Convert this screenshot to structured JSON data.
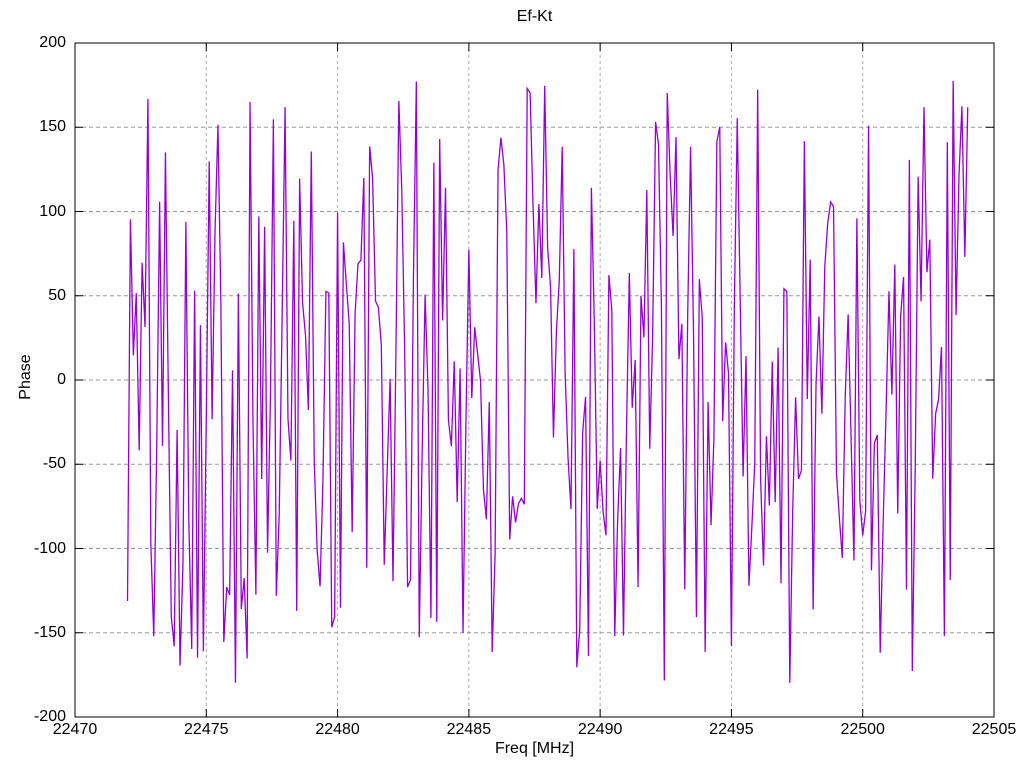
{
  "window": {
    "background_color": "#ffffff"
  },
  "chart_data": {
    "type": "line",
    "title": "Ef-Kt",
    "xlabel": "Freq [MHz]",
    "ylabel": "Phase",
    "xlim": [
      22470,
      22505
    ],
    "ylim": [
      -200,
      200
    ],
    "x_ticks": [
      22470,
      22475,
      22480,
      22485,
      22490,
      22495,
      22500,
      22505
    ],
    "y_ticks": [
      -200,
      -150,
      -100,
      -50,
      0,
      50,
      100,
      150,
      200
    ],
    "grid": true,
    "legend": "none",
    "axis_color": "#000000",
    "grid_color_horizontal": "#999999",
    "grid_color_vertical": "#aaaaaa",
    "series": [
      {
        "name": "Ef-Kt",
        "color": "#9400d3",
        "style": "wrapped-phase-noise",
        "x_start": 22472.0,
        "x_end": 22504.0,
        "n_points": 289,
        "value_range": [
          -180,
          180
        ],
        "seed": 101
      }
    ]
  }
}
